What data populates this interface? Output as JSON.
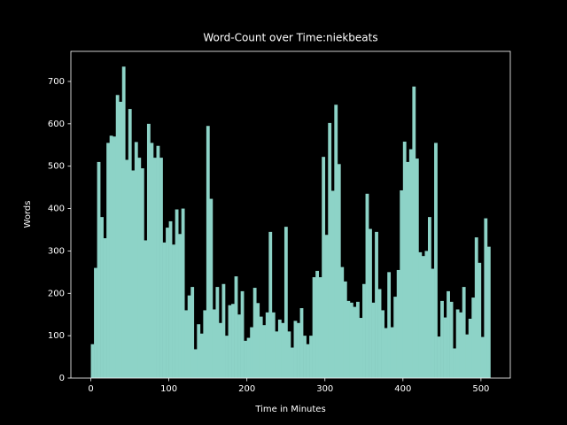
{
  "chart_data": {
    "type": "histogram",
    "title": "Word-Count over Time:niekbeats",
    "x_label": "Time in Minutes",
    "y_label": "Words",
    "color": "#8dd3c7",
    "bins": [
      0,
      4,
      8,
      12,
      16,
      20,
      24,
      28,
      32,
      36,
      40,
      44,
      48,
      52,
      56,
      60,
      64,
      68,
      72,
      76,
      80,
      84,
      88,
      92,
      96,
      100,
      104,
      108,
      112,
      116,
      120,
      124,
      128,
      132,
      136,
      140,
      144,
      148,
      152,
      156,
      160,
      164,
      168,
      172,
      176,
      180,
      184,
      188,
      192,
      196,
      200,
      204,
      208,
      212,
      216,
      220,
      224,
      228,
      232,
      236,
      240,
      244,
      248,
      252,
      256,
      260,
      264,
      268,
      272,
      276,
      280,
      284,
      288,
      292,
      296,
      300,
      304,
      308,
      312,
      316,
      320,
      324,
      328,
      332,
      336,
      340,
      344,
      348,
      352,
      356,
      360,
      364,
      368,
      372,
      376,
      380,
      384,
      388,
      392,
      396,
      400,
      404,
      408,
      412,
      416,
      420,
      424,
      428,
      432,
      436,
      440,
      444,
      448,
      452,
      456,
      460,
      464,
      468,
      472,
      476,
      480,
      484,
      488,
      492,
      496,
      500,
      504,
      508,
      512
    ],
    "values": [
      80,
      260,
      510,
      380,
      330,
      555,
      572,
      570,
      668,
      652,
      735,
      515,
      635,
      490,
      557,
      520,
      495,
      325,
      600,
      555,
      520,
      548,
      520,
      320,
      355,
      370,
      315,
      398,
      340,
      400,
      160,
      195,
      215,
      68,
      127,
      105,
      160,
      595,
      423,
      162,
      215,
      130,
      222,
      100,
      172,
      175,
      240,
      150,
      205,
      88,
      95,
      120,
      213,
      177,
      145,
      125,
      155,
      345,
      155,
      110,
      138,
      130,
      357,
      110,
      72,
      135,
      130,
      165,
      100,
      80,
      100,
      238,
      253,
      238,
      522,
      338,
      602,
      442,
      645,
      505,
      262,
      228,
      182,
      178,
      168,
      180,
      142,
      222,
      435,
      352,
      178,
      345,
      210,
      160,
      118,
      250,
      120,
      192,
      255,
      443,
      558,
      510,
      540,
      688,
      518,
      297,
      288,
      300,
      380,
      258,
      555,
      98,
      182,
      143,
      205,
      180,
      70,
      162,
      155,
      215,
      103,
      140,
      190,
      332,
      272,
      97,
      377,
      310
    ],
    "xlim": [
      -25.6,
      537.6
    ],
    "ylim": [
      0,
      771
    ],
    "xticks": [
      0,
      100,
      200,
      300,
      400,
      500
    ],
    "yticks": [
      0,
      100,
      200,
      300,
      400,
      500,
      600,
      700
    ]
  }
}
